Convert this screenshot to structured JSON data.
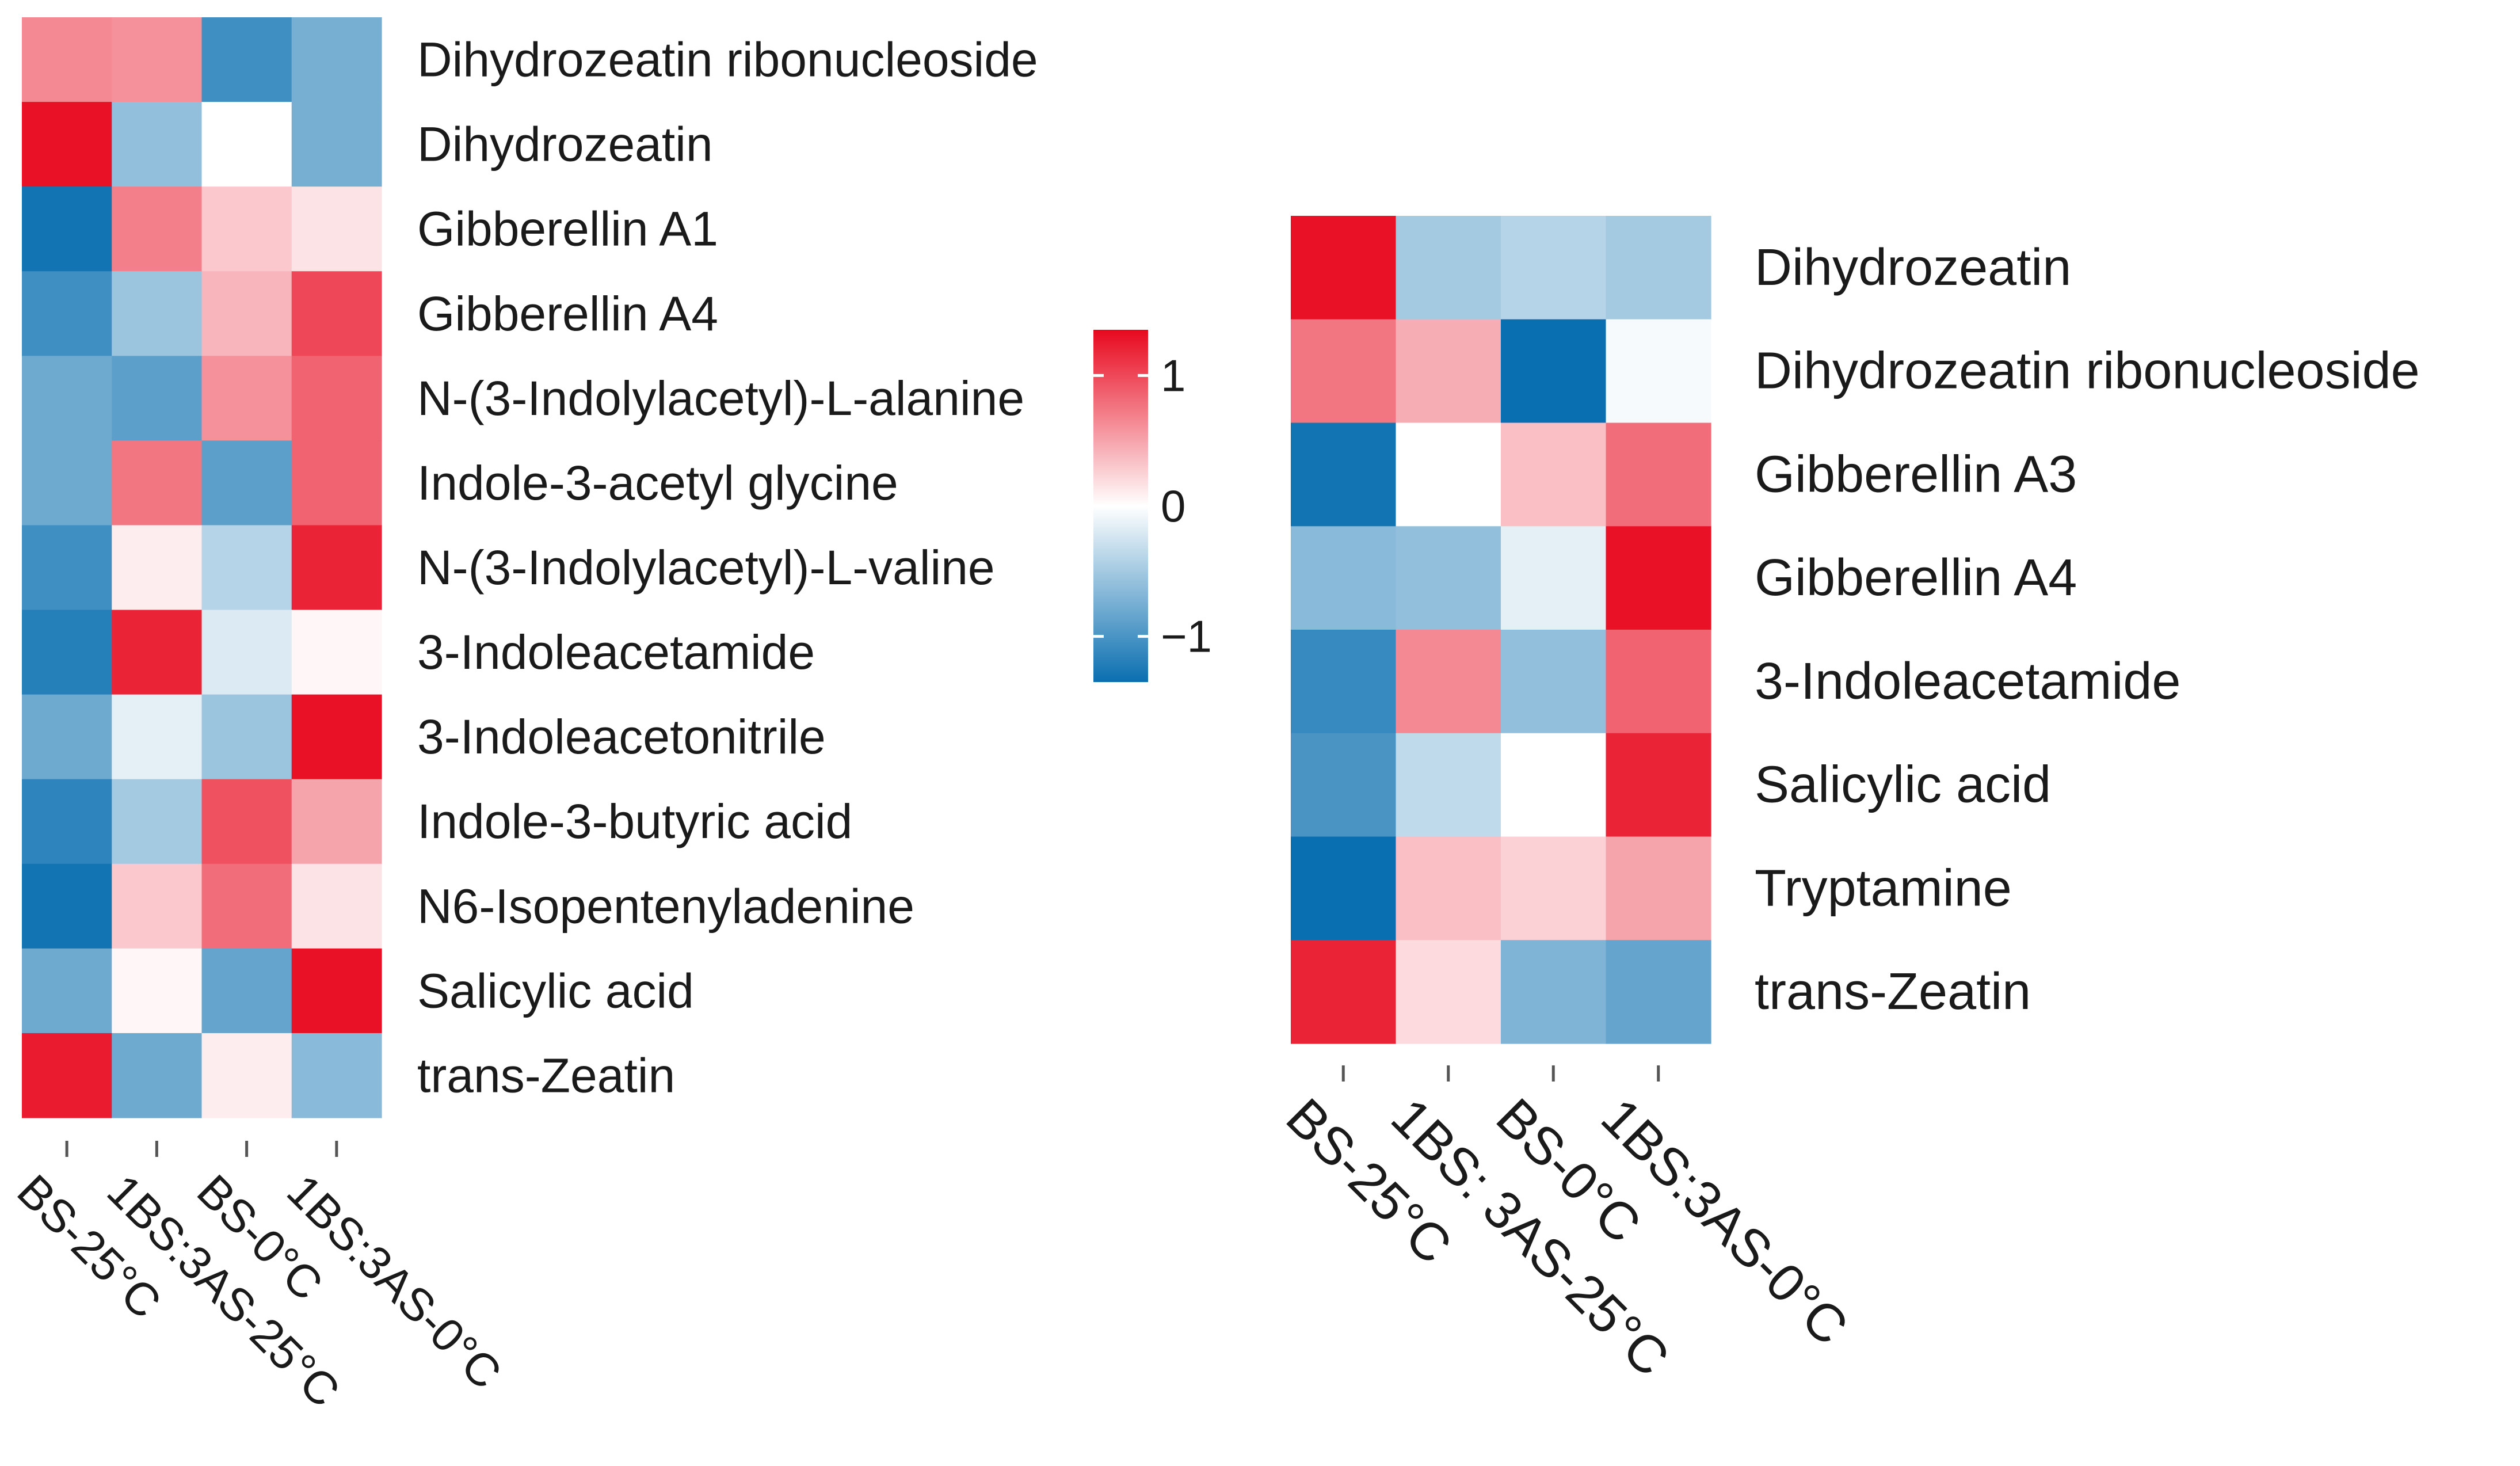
{
  "chart_data": [
    {
      "type": "heatmap",
      "columns": [
        "BS-25°C",
        "1BS:3AS-25°C",
        "BS-0°C",
        "1BS:3AS-0°C"
      ],
      "rows": [
        "Dihydrozeatin ribonucleoside",
        "Dihydrozeatin",
        "Gibberellin A1",
        "Gibberellin A4",
        "N-(3-Indolylacetyl)-L-alanine",
        "Indole-3-acetyl glycine",
        "N-(3-Indolylacetyl)-L-valine",
        "3-Indoleacetamide",
        "3-Indoleacetonitrile",
        "Indole-3-butyric acid",
        "N6-Isopentenyladenine",
        "Salicylic acid",
        "trans-Zeatin"
      ],
      "values": [
        [
          0.65,
          0.6,
          -1.05,
          -0.75
        ],
        [
          1.3,
          -0.6,
          0.0,
          -0.75
        ],
        [
          -1.3,
          0.7,
          0.3,
          0.15
        ],
        [
          -1.05,
          -0.55,
          0.4,
          1.0
        ],
        [
          -0.8,
          -0.9,
          0.6,
          0.85
        ],
        [
          -0.8,
          0.75,
          -0.9,
          0.85
        ],
        [
          -1.05,
          0.1,
          -0.4,
          1.2
        ],
        [
          -1.2,
          1.2,
          -0.2,
          0.05
        ],
        [
          -0.8,
          -0.15,
          -0.55,
          1.3
        ],
        [
          -1.15,
          -0.5,
          0.95,
          0.5
        ],
        [
          -1.3,
          0.3,
          0.8,
          0.15
        ],
        [
          -0.8,
          0.05,
          -0.85,
          1.3
        ],
        [
          1.25,
          -0.8,
          0.1,
          -0.65
        ]
      ],
      "xlabel": "",
      "ylabel": ""
    },
    {
      "type": "heatmap",
      "columns": [
        "BS-25°C",
        "1BS: 3AS-25°C",
        "BS-0°C",
        "1BS:3AS-0°C"
      ],
      "rows": [
        "Dihydrozeatin",
        "Dihydrozeatin ribonucleoside",
        "Gibberellin A3",
        "Gibberellin A4",
        "3-Indoleacetamide",
        "Salicylic acid",
        "Tryptamine",
        "trans-Zeatin"
      ],
      "values": [
        [
          1.3,
          -0.5,
          -0.4,
          -0.5
        ],
        [
          0.75,
          0.45,
          -1.35,
          -0.05
        ],
        [
          -1.3,
          0.0,
          0.35,
          0.8
        ],
        [
          -0.65,
          -0.6,
          -0.15,
          1.3
        ],
        [
          -1.1,
          0.65,
          -0.6,
          0.85
        ],
        [
          -1.0,
          -0.35,
          0.0,
          1.2
        ],
        [
          -1.35,
          0.35,
          0.25,
          0.5
        ],
        [
          1.2,
          0.2,
          -0.7,
          -0.85
        ]
      ],
      "xlabel": "",
      "ylabel": ""
    }
  ],
  "legend": {
    "ticks": [
      "1",
      "0",
      "−1"
    ],
    "tick_values": [
      1,
      0,
      -1
    ],
    "range": [
      -1.35,
      1.35
    ],
    "colors": {
      "low": "#0a6fb0",
      "mid": "#ffffff",
      "high": "#e8081e"
    }
  }
}
